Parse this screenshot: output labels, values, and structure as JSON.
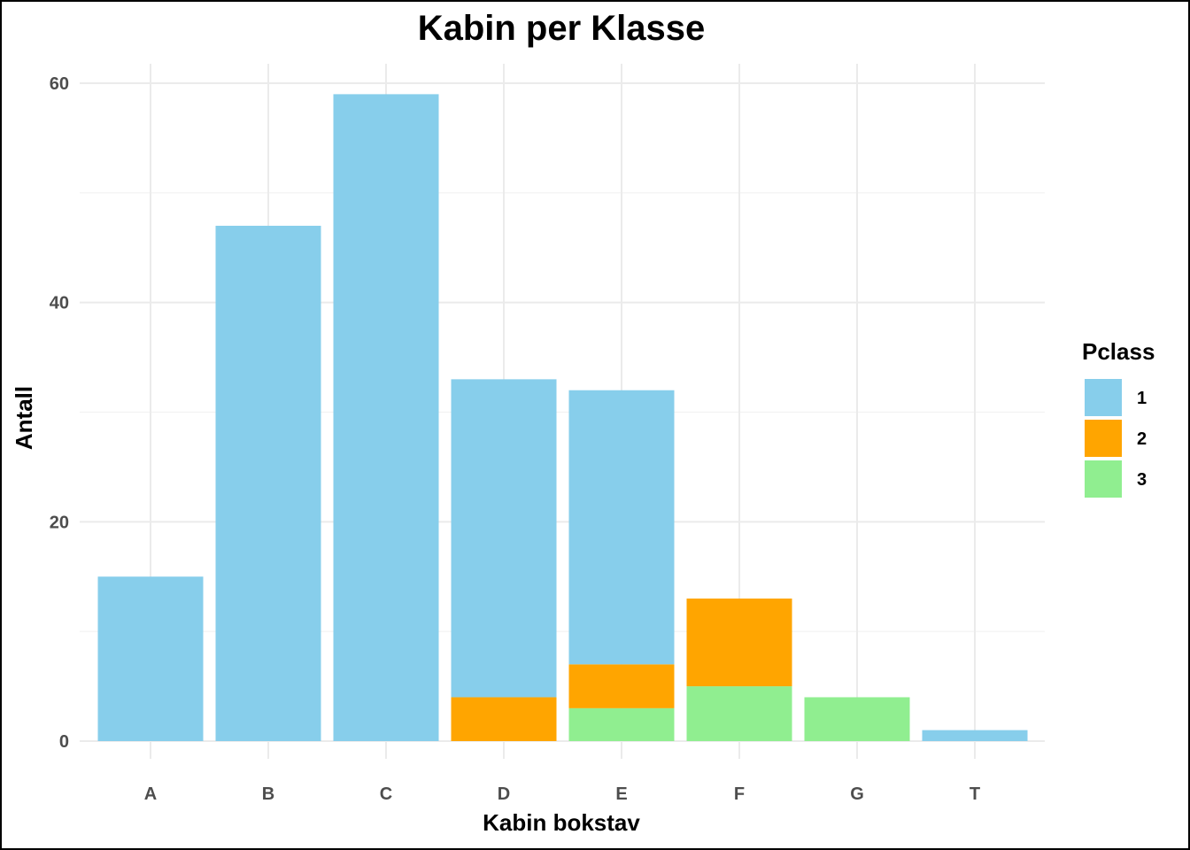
{
  "chart_data": {
    "type": "bar",
    "stacked": true,
    "title": "Kabin per Klasse",
    "xlabel": "Kabin bokstav",
    "ylabel": "Antall",
    "categories": [
      "A",
      "B",
      "C",
      "D",
      "E",
      "F",
      "G",
      "T"
    ],
    "ylim": [
      0,
      60
    ],
    "y_ticks": [
      0,
      20,
      40,
      60
    ],
    "grid": true,
    "legend": {
      "title": "Pclass",
      "placement": "right"
    },
    "series": [
      {
        "name": "1",
        "color": "#87CEEB",
        "values": [
          15,
          47,
          59,
          29,
          25,
          0,
          0,
          1
        ]
      },
      {
        "name": "2",
        "color": "#FFA500",
        "values": [
          0,
          0,
          0,
          4,
          4,
          8,
          0,
          0
        ]
      },
      {
        "name": "3",
        "color": "#90EE90",
        "values": [
          0,
          0,
          0,
          0,
          3,
          5,
          4,
          0
        ]
      }
    ]
  }
}
